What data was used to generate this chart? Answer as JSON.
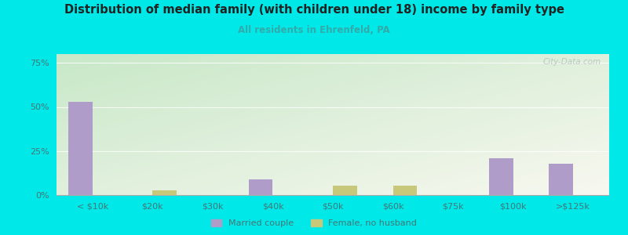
{
  "title": "Distribution of median family (with children under 18) income by family type",
  "subtitle": "All residents in Ehrenfeld, PA",
  "categories": [
    "< $10k",
    "$20k",
    "$30k",
    "$40k",
    "$50k",
    "$60k",
    "$75k",
    "$100k",
    ">$125k"
  ],
  "married_couple": [
    53.0,
    0.0,
    0.0,
    9.0,
    0.0,
    0.0,
    0.0,
    21.0,
    18.0
  ],
  "female_no_husband": [
    0.0,
    2.5,
    0.0,
    0.0,
    5.5,
    5.5,
    0.0,
    0.0,
    0.0
  ],
  "married_color": "#b09cc8",
  "female_color": "#c8c87a",
  "bg_color": "#00e8e8",
  "chart_bg_topleft": "#c8e8c8",
  "chart_bg_bottomright": "#f8f8f0",
  "title_color": "#222222",
  "subtitle_color": "#33aaaa",
  "axis_label_color": "#447777",
  "yticks": [
    0,
    25,
    50,
    75
  ],
  "ylim": [
    0,
    80
  ],
  "bar_width": 0.4,
  "watermark": "City-Data.com"
}
